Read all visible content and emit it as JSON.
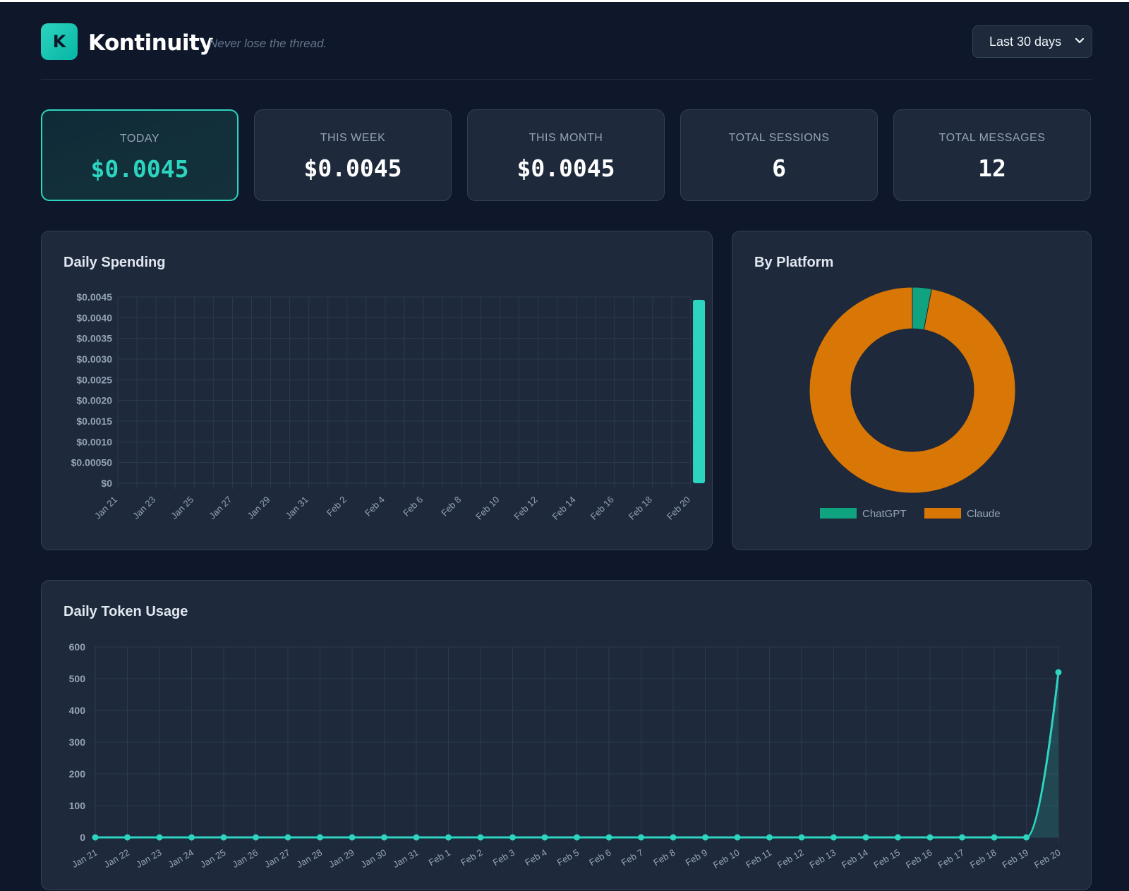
{
  "header": {
    "logo_letter": "K",
    "brand": "Kontinuity",
    "tagline": "Never lose the thread.",
    "range_select": "Last 30 days"
  },
  "stats": [
    {
      "label": "TODAY",
      "value": "$0.0045"
    },
    {
      "label": "THIS WEEK",
      "value": "$0.0045"
    },
    {
      "label": "THIS MONTH",
      "value": "$0.0045"
    },
    {
      "label": "TOTAL SESSIONS",
      "value": "6"
    },
    {
      "label": "TOTAL MESSAGES",
      "value": "12"
    }
  ],
  "panels": {
    "daily_spending": "Daily Spending",
    "by_platform": "By Platform",
    "daily_tokens": "Daily Token Usage"
  },
  "colors": {
    "accent": "#2dd4bf",
    "chatgpt": "#10a37f",
    "claude": "#d97706"
  },
  "chart_data": [
    {
      "type": "bar",
      "title": "Daily Spending",
      "categories": [
        "Jan 21",
        "Jan 22",
        "Jan 23",
        "Jan 24",
        "Jan 25",
        "Jan 26",
        "Jan 27",
        "Jan 28",
        "Jan 29",
        "Jan 30",
        "Jan 31",
        "Feb 1",
        "Feb 2",
        "Feb 3",
        "Feb 4",
        "Feb 5",
        "Feb 6",
        "Feb 7",
        "Feb 8",
        "Feb 9",
        "Feb 10",
        "Feb 11",
        "Feb 12",
        "Feb 13",
        "Feb 14",
        "Feb 15",
        "Feb 16",
        "Feb 17",
        "Feb 18",
        "Feb 19",
        "Feb 20"
      ],
      "tick_labels": [
        "Jan 21",
        "Jan 23",
        "Jan 25",
        "Jan 27",
        "Jan 29",
        "Jan 31",
        "Feb 2",
        "Feb 4",
        "Feb 6",
        "Feb 8",
        "Feb 10",
        "Feb 12",
        "Feb 14",
        "Feb 16",
        "Feb 18",
        "Feb 20"
      ],
      "values": [
        0,
        0,
        0,
        0,
        0,
        0,
        0,
        0,
        0,
        0,
        0,
        0,
        0,
        0,
        0,
        0,
        0,
        0,
        0,
        0,
        0,
        0,
        0,
        0,
        0,
        0,
        0,
        0,
        0,
        0,
        0.0045
      ],
      "y_ticks": [
        "$0",
        "$0.00050",
        "$0.0010",
        "$0.0015",
        "$0.0020",
        "$0.0025",
        "$0.0030",
        "$0.0035",
        "$0.0040",
        "$0.0045"
      ],
      "ylim": [
        0,
        0.0045
      ],
      "grid": true
    },
    {
      "type": "pie",
      "title": "By Platform",
      "labels": [
        "ChatGPT",
        "Claude"
      ],
      "values": [
        3,
        97
      ],
      "legend": "bottom"
    },
    {
      "type": "line",
      "title": "Daily Token Usage",
      "x": [
        "Jan 21",
        "Jan 22",
        "Jan 23",
        "Jan 24",
        "Jan 25",
        "Jan 26",
        "Jan 27",
        "Jan 28",
        "Jan 29",
        "Jan 30",
        "Jan 31",
        "Feb 1",
        "Feb 2",
        "Feb 3",
        "Feb 4",
        "Feb 5",
        "Feb 6",
        "Feb 7",
        "Feb 8",
        "Feb 9",
        "Feb 10",
        "Feb 11",
        "Feb 12",
        "Feb 13",
        "Feb 14",
        "Feb 15",
        "Feb 16",
        "Feb 17",
        "Feb 18",
        "Feb 19",
        "Feb 20"
      ],
      "values": [
        0,
        0,
        0,
        0,
        0,
        0,
        0,
        0,
        0,
        0,
        0,
        0,
        0,
        0,
        0,
        0,
        0,
        0,
        0,
        0,
        0,
        0,
        0,
        0,
        0,
        0,
        0,
        0,
        0,
        0,
        520
      ],
      "y_ticks": [
        "0",
        "100",
        "200",
        "300",
        "400",
        "500",
        "600"
      ],
      "ylim": [
        0,
        600
      ],
      "grid": true,
      "filled": true
    }
  ]
}
